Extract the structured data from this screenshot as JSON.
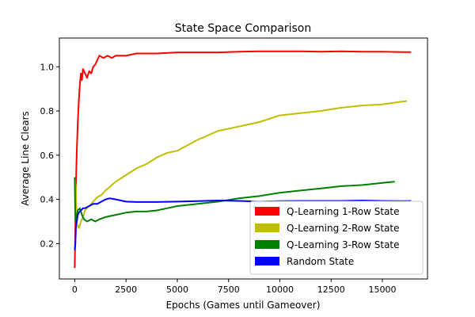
{
  "chart_data": {
    "type": "line",
    "title": "State Space Comparison",
    "xlabel": "Epochs (Games until Gameover)",
    "ylabel": "Average Line Clears",
    "xlim": [
      -750,
      17200
    ],
    "ylim": [
      0.04,
      1.13
    ],
    "xticks": [
      0,
      2500,
      5000,
      7500,
      10000,
      12500,
      15000
    ],
    "xtick_labels": [
      "0",
      "2500",
      "5000",
      "7500",
      "10000",
      "12500",
      "15000"
    ],
    "yticks": [
      0.2,
      0.4,
      0.6,
      0.8,
      1.0
    ],
    "ytick_labels": [
      "0.2",
      "0.4",
      "0.6",
      "0.8",
      "1.0"
    ],
    "grid": false,
    "legend_position": "lower-right",
    "series": [
      {
        "name": "Q-Learning 1-Row State",
        "color": "#ff0000",
        "x": [
          0,
          30,
          60,
          100,
          150,
          200,
          250,
          300,
          350,
          400,
          500,
          600,
          700,
          800,
          900,
          1000,
          1100,
          1200,
          1400,
          1600,
          1800,
          2000,
          2200,
          2500,
          3000,
          3500,
          4000,
          5000,
          6000,
          7000,
          8000,
          9000,
          10000,
          11000,
          12000,
          13000,
          14000,
          15000,
          16000,
          16400
        ],
        "y": [
          0.09,
          0.28,
          0.48,
          0.62,
          0.75,
          0.85,
          0.92,
          0.97,
          0.94,
          0.99,
          0.97,
          0.95,
          0.98,
          0.97,
          1.0,
          1.01,
          1.03,
          1.05,
          1.04,
          1.05,
          1.04,
          1.05,
          1.05,
          1.05,
          1.06,
          1.06,
          1.06,
          1.065,
          1.065,
          1.065,
          1.068,
          1.07,
          1.07,
          1.07,
          1.068,
          1.07,
          1.068,
          1.068,
          1.066,
          1.066
        ]
      },
      {
        "name": "Q-Learning 2-Row State",
        "color": "#bfbf00",
        "x": [
          0,
          50,
          100,
          200,
          300,
          400,
          500,
          700,
          900,
          1100,
          1300,
          1500,
          2000,
          2500,
          3000,
          3500,
          4000,
          4500,
          5000,
          6000,
          7000,
          8000,
          9000,
          10000,
          11000,
          12000,
          13000,
          14000,
          15000,
          16000,
          16200
        ],
        "y": [
          0.5,
          0.46,
          0.29,
          0.27,
          0.3,
          0.32,
          0.35,
          0.37,
          0.39,
          0.41,
          0.42,
          0.44,
          0.48,
          0.51,
          0.54,
          0.56,
          0.59,
          0.61,
          0.62,
          0.67,
          0.71,
          0.73,
          0.75,
          0.78,
          0.79,
          0.8,
          0.815,
          0.825,
          0.83,
          0.843,
          0.845
        ]
      },
      {
        "name": "Q-Learning 3-Row State",
        "color": "#008000",
        "x": [
          0,
          30,
          80,
          150,
          250,
          350,
          450,
          600,
          800,
          1000,
          1200,
          1500,
          2000,
          2500,
          3000,
          3500,
          4000,
          4500,
          5000,
          6000,
          7000,
          8000,
          9000,
          10000,
          11000,
          12000,
          13000,
          14000,
          15000,
          15600
        ],
        "y": [
          0.5,
          0.3,
          0.32,
          0.35,
          0.36,
          0.33,
          0.31,
          0.3,
          0.31,
          0.3,
          0.31,
          0.32,
          0.33,
          0.34,
          0.345,
          0.345,
          0.35,
          0.36,
          0.37,
          0.38,
          0.39,
          0.405,
          0.415,
          0.43,
          0.44,
          0.45,
          0.46,
          0.465,
          0.475,
          0.48
        ]
      },
      {
        "name": "Random State",
        "color": "#0000ff",
        "x": [
          0,
          30,
          60,
          100,
          150,
          200,
          300,
          400,
          500,
          700,
          900,
          1100,
          1300,
          1500,
          1700,
          2000,
          2500,
          3000,
          4000,
          5000,
          6000,
          7000,
          8000,
          9000,
          10000,
          11000,
          12000,
          13000,
          14000,
          15000,
          16000,
          16400
        ],
        "y": [
          0.17,
          0.2,
          0.28,
          0.3,
          0.33,
          0.34,
          0.35,
          0.36,
          0.36,
          0.37,
          0.38,
          0.38,
          0.39,
          0.4,
          0.405,
          0.4,
          0.39,
          0.388,
          0.388,
          0.39,
          0.392,
          0.395,
          0.393,
          0.39,
          0.392,
          0.393,
          0.393,
          0.393,
          0.395,
          0.393,
          0.392,
          0.393
        ]
      }
    ]
  }
}
